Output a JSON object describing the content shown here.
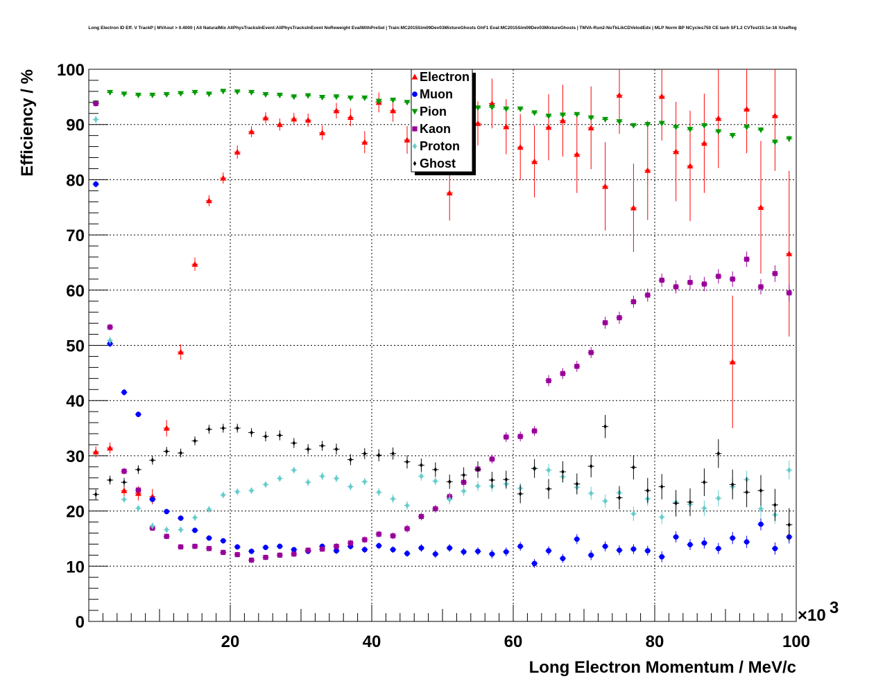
{
  "chart_data": {
    "type": "scatter",
    "title": "Long Electron ID Eff. V TrackP | MVAout > 0.4000 | All NaturalMix AllPhysTracksInEvent:AllPhysTracksInEvent NoReweight EvalWithPreSel | Train:MC2015Sim09Dev03MixtureGhosts GhF1 Eval:MC2015Sim09Dev03MixtureGhosts | TMVA-Run2-NoTkLikCDVelodEdx | MLP Norm BP NCycles750 CE tanh SF1.2 CVTest15:1e-16 !UseReg",
    "xlabel": "Long Electron Momentum / MeV/c",
    "ylabel": "Efficiency / %",
    "x_multiplier_label": "×10",
    "x_multiplier_exp": "3",
    "xlim": [
      0,
      100
    ],
    "ylim": [
      0,
      100
    ],
    "x_ticks": [
      "20",
      "40",
      "60",
      "80",
      "100"
    ],
    "y_ticks": [
      "0",
      "10",
      "20",
      "30",
      "40",
      "50",
      "60",
      "70",
      "80",
      "90",
      "100"
    ],
    "grid": true,
    "legend_position": "top-center",
    "series": [
      {
        "name": "Electron",
        "color": "#ff0000",
        "marker": "triangle-up",
        "x": [
          1,
          3,
          5,
          7,
          9,
          11,
          13,
          15,
          17,
          19,
          21,
          23,
          25,
          27,
          29,
          31,
          33,
          35,
          37,
          39,
          41,
          43,
          45,
          47,
          49,
          51,
          53,
          55,
          57,
          59,
          61,
          63,
          65,
          67,
          69,
          71,
          73,
          75,
          77,
          79,
          81,
          83,
          85,
          87,
          89,
          91,
          93,
          95,
          97,
          99
        ],
        "y": [
          30.7,
          31.4,
          23.7,
          23.2,
          22.6,
          35.0,
          48.8,
          64.7,
          76.2,
          80.3,
          85.0,
          88.7,
          91.2,
          90.0,
          91.0,
          90.8,
          88.5,
          92.5,
          91.3,
          86.8,
          94.0,
          92.5,
          87.2,
          91.5,
          90.0,
          77.6,
          89.8,
          90.2,
          93.8,
          89.6,
          85.9,
          83.3,
          89.5,
          90.7,
          84.6,
          89.4,
          78.8,
          95.3,
          74.9,
          81.7,
          95.1,
          85.1,
          82.5,
          86.6,
          91.1,
          47.0,
          92.8,
          75.0,
          91.6,
          66.6
        ],
        "yerr": [
          1.0,
          1.0,
          1.2,
          1.3,
          1.4,
          1.5,
          1.4,
          1.2,
          1.0,
          1.0,
          1.2,
          1.0,
          1.0,
          1.1,
          1.1,
          1.2,
          1.3,
          1.4,
          1.6,
          2.0,
          1.8,
          2.0,
          2.5,
          2.8,
          3.0,
          5.0,
          4.0,
          4.0,
          4.5,
          5.0,
          6.0,
          6.5,
          6.0,
          6.5,
          7.0,
          7.5,
          8.0,
          7.0,
          8.0,
          9.0,
          8.0,
          9.0,
          10.0,
          9.0,
          9.0,
          12.0,
          8.0,
          12.0,
          10.0,
          15.0
        ]
      },
      {
        "name": "Muon",
        "color": "#0000ff",
        "marker": "circle",
        "x": [
          1,
          3,
          5,
          7,
          9,
          11,
          13,
          15,
          17,
          19,
          21,
          23,
          25,
          27,
          29,
          31,
          33,
          35,
          37,
          39,
          41,
          43,
          45,
          47,
          49,
          51,
          53,
          55,
          57,
          59,
          61,
          63,
          65,
          67,
          69,
          71,
          73,
          75,
          77,
          79,
          81,
          83,
          85,
          87,
          89,
          91,
          93,
          95,
          97,
          99
        ],
        "y": [
          79.2,
          50.3,
          41.5,
          37.5,
          22.1,
          19.9,
          18.7,
          16.5,
          15.1,
          14.6,
          13.5,
          12.7,
          13.4,
          13.6,
          13.0,
          12.7,
          13.6,
          12.8,
          13.6,
          13.0,
          13.7,
          13.0,
          12.3,
          13.3,
          12.2,
          13.3,
          12.6,
          12.7,
          12.2,
          12.6,
          13.6,
          10.5,
          12.8,
          11.4,
          14.9,
          12.0,
          13.6,
          12.9,
          13.1,
          12.8,
          11.7,
          15.3,
          13.9,
          14.2,
          13.2,
          15.1,
          14.4,
          17.6,
          13.2,
          15.3
        ],
        "yerr": [
          0.6,
          0.6,
          0.6,
          0.5,
          0.5,
          0.5,
          0.5,
          0.5,
          0.5,
          0.5,
          0.5,
          0.5,
          0.5,
          0.5,
          0.5,
          0.5,
          0.5,
          0.6,
          0.6,
          0.6,
          0.6,
          0.6,
          0.6,
          0.7,
          0.7,
          0.7,
          0.7,
          0.7,
          0.8,
          0.8,
          0.8,
          0.8,
          0.8,
          0.8,
          0.9,
          0.9,
          0.9,
          0.9,
          0.9,
          0.9,
          1.0,
          1.0,
          1.0,
          1.0,
          1.0,
          1.1,
          1.1,
          1.1,
          1.1,
          1.2
        ]
      },
      {
        "name": "Pion",
        "color": "#009900",
        "marker": "triangle-down",
        "x": [
          1,
          3,
          5,
          7,
          9,
          11,
          13,
          15,
          17,
          19,
          21,
          23,
          25,
          27,
          29,
          31,
          33,
          35,
          37,
          39,
          41,
          43,
          45,
          47,
          49,
          51,
          53,
          55,
          57,
          59,
          61,
          63,
          65,
          67,
          69,
          71,
          73,
          75,
          77,
          79,
          81,
          83,
          85,
          87,
          89,
          91,
          93,
          95,
          97,
          99
        ],
        "y": [
          93.9,
          95.8,
          95.5,
          95.3,
          95.3,
          95.4,
          95.6,
          95.8,
          95.5,
          96.0,
          95.9,
          95.8,
          95.4,
          95.3,
          95.0,
          95.2,
          94.9,
          95.0,
          94.8,
          94.8,
          94.2,
          94.4,
          94.0,
          93.9,
          93.6,
          93.3,
          93.3,
          93.0,
          93.1,
          92.8,
          92.8,
          92.1,
          91.5,
          91.7,
          91.8,
          91.2,
          90.9,
          90.5,
          89.8,
          90.0,
          90.2,
          89.5,
          89.1,
          89.8,
          88.7,
          88.0,
          89.5,
          89.0,
          86.8,
          87.4
        ],
        "yerr": [
          0.3,
          0.2,
          0.2,
          0.2,
          0.2,
          0.2,
          0.2,
          0.2,
          0.2,
          0.2,
          0.2,
          0.2,
          0.2,
          0.2,
          0.2,
          0.2,
          0.2,
          0.2,
          0.2,
          0.2,
          0.2,
          0.2,
          0.3,
          0.3,
          0.3,
          0.3,
          0.3,
          0.3,
          0.3,
          0.3,
          0.3,
          0.3,
          0.4,
          0.4,
          0.4,
          0.4,
          0.4,
          0.4,
          0.4,
          0.4,
          0.5,
          0.5,
          0.5,
          0.5,
          0.5,
          0.5,
          0.5,
          0.5,
          0.6,
          0.6
        ]
      },
      {
        "name": "Kaon",
        "color": "#990099",
        "marker": "square",
        "x": [
          1,
          3,
          5,
          7,
          9,
          11,
          13,
          15,
          17,
          19,
          21,
          23,
          25,
          27,
          29,
          31,
          33,
          35,
          37,
          39,
          41,
          43,
          45,
          47,
          49,
          51,
          53,
          55,
          57,
          59,
          61,
          63,
          65,
          67,
          69,
          71,
          73,
          75,
          77,
          79,
          81,
          83,
          85,
          87,
          89,
          91,
          93,
          95,
          97,
          99
        ],
        "y": [
          93.8,
          53.3,
          27.2,
          23.8,
          16.9,
          15.4,
          13.5,
          13.6,
          13.2,
          12.5,
          12.1,
          11.1,
          11.6,
          12.0,
          12.2,
          12.9,
          13.1,
          13.6,
          14.2,
          14.8,
          15.8,
          15.5,
          16.8,
          19.0,
          20.4,
          22.6,
          25.2,
          27.6,
          29.4,
          33.4,
          33.5,
          34.5,
          43.6,
          44.9,
          46.2,
          48.7,
          54.1,
          55.0,
          57.9,
          59.1,
          61.8,
          60.6,
          61.4,
          61.1,
          62.5,
          62.0,
          65.6,
          60.6,
          63.0,
          59.5
        ],
        "yerr": [
          0.6,
          0.6,
          0.6,
          0.5,
          0.5,
          0.5,
          0.5,
          0.5,
          0.5,
          0.5,
          0.5,
          0.5,
          0.5,
          0.5,
          0.5,
          0.5,
          0.5,
          0.6,
          0.6,
          0.6,
          0.6,
          0.6,
          0.7,
          0.7,
          0.7,
          0.7,
          0.8,
          0.8,
          0.8,
          0.9,
          0.9,
          0.9,
          1.0,
          1.0,
          1.0,
          1.0,
          1.1,
          1.1,
          1.1,
          1.2,
          1.2,
          1.2,
          1.3,
          1.3,
          1.3,
          1.4,
          1.4,
          1.4,
          1.5,
          1.5
        ]
      },
      {
        "name": "Proton",
        "color": "#66cccc",
        "marker": "diamond",
        "x": [
          1,
          3,
          5,
          7,
          9,
          11,
          13,
          15,
          17,
          19,
          21,
          23,
          25,
          27,
          29,
          31,
          33,
          35,
          37,
          39,
          41,
          43,
          45,
          47,
          49,
          51,
          53,
          55,
          57,
          59,
          61,
          63,
          65,
          67,
          69,
          71,
          73,
          75,
          77,
          79,
          81,
          83,
          85,
          87,
          89,
          91,
          93,
          95,
          97,
          99
        ],
        "y": [
          90.9,
          50.9,
          22.1,
          20.5,
          17.3,
          16.6,
          16.6,
          18.8,
          20.3,
          22.9,
          23.5,
          23.7,
          24.8,
          25.9,
          27.4,
          25.2,
          26.3,
          25.9,
          24.4,
          25.3,
          23.4,
          22.2,
          21.0,
          26.3,
          25.4,
          22.1,
          23.6,
          24.5,
          24.5,
          24.9,
          24.1,
          27.7,
          27.4,
          26.2,
          24.3,
          23.2,
          21.8,
          23.3,
          19.5,
          22.2,
          18.9,
          21.6,
          21.2,
          20.5,
          22.3,
          24.4,
          25.7,
          20.4,
          19.3,
          27.4
        ],
        "yerr": [
          0.7,
          0.7,
          0.6,
          0.6,
          0.6,
          0.6,
          0.6,
          0.6,
          0.6,
          0.6,
          0.6,
          0.6,
          0.6,
          0.6,
          0.6,
          0.7,
          0.7,
          0.7,
          0.7,
          0.7,
          0.7,
          0.8,
          0.8,
          0.8,
          0.8,
          0.9,
          0.9,
          0.9,
          1.0,
          1.0,
          1.0,
          1.0,
          1.1,
          1.1,
          1.1,
          1.2,
          1.2,
          1.2,
          1.3,
          1.3,
          1.3,
          1.4,
          1.4,
          1.4,
          1.5,
          1.5,
          1.6,
          1.6,
          1.6,
          1.7
        ]
      },
      {
        "name": "Ghost",
        "color": "#000000",
        "marker": "cross",
        "x": [
          1,
          3,
          5,
          7,
          9,
          11,
          13,
          15,
          17,
          19,
          21,
          23,
          25,
          27,
          29,
          31,
          33,
          35,
          37,
          39,
          41,
          43,
          45,
          47,
          49,
          51,
          53,
          55,
          57,
          59,
          61,
          63,
          65,
          67,
          69,
          71,
          73,
          75,
          77,
          79,
          81,
          83,
          85,
          87,
          89,
          91,
          93,
          95,
          97,
          99
        ],
        "y": [
          23.0,
          25.6,
          25.2,
          27.5,
          29.2,
          30.8,
          30.5,
          32.7,
          34.8,
          35.0,
          35.0,
          34.2,
          33.5,
          33.7,
          32.3,
          31.2,
          31.8,
          31.2,
          29.3,
          30.4,
          30.1,
          30.4,
          28.9,
          28.3,
          27.5,
          25.3,
          26.5,
          27.5,
          25.6,
          25.7,
          23.1,
          27.7,
          24.0,
          27.1,
          24.9,
          28.1,
          35.3,
          22.4,
          27.9,
          23.7,
          24.4,
          21.4,
          21.6,
          25.2,
          30.4,
          24.8,
          23.4,
          23.7,
          21.1,
          17.5
        ],
        "yerr": [
          0.9,
          0.8,
          0.8,
          0.8,
          0.8,
          0.8,
          0.8,
          0.8,
          0.8,
          0.8,
          0.8,
          0.8,
          0.9,
          0.9,
          0.9,
          0.9,
          0.9,
          1.0,
          1.0,
          1.0,
          1.1,
          1.1,
          1.2,
          1.2,
          1.3,
          1.3,
          1.4,
          1.5,
          1.5,
          1.6,
          1.7,
          1.7,
          1.8,
          1.9,
          1.9,
          2.0,
          2.1,
          2.1,
          2.2,
          2.3,
          2.3,
          2.4,
          2.5,
          2.5,
          2.6,
          2.7,
          2.7,
          2.8,
          2.9,
          3.0
        ]
      }
    ]
  }
}
